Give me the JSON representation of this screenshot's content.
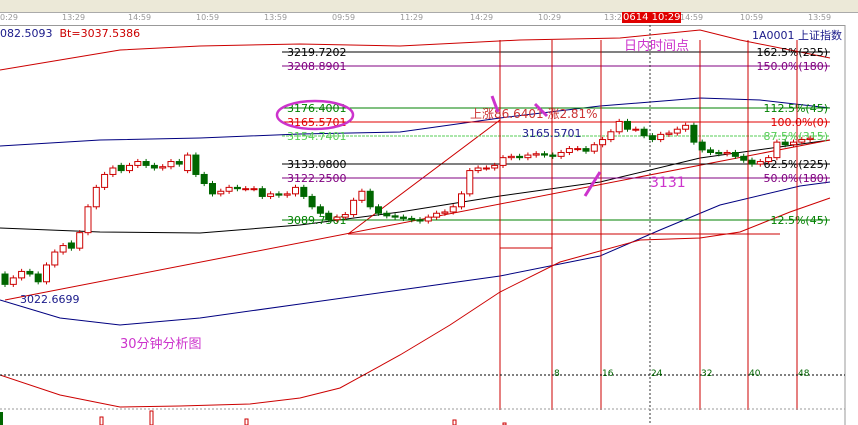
{
  "header": {
    "ma_value": "082.5093",
    "bt_value": "Bt=3037.5386",
    "symbol": "1A0001  上证指数",
    "cursor_time": "0614 10:29"
  },
  "time_axis": [
    "0:29",
    "13:29",
    "14:59",
    "10:59",
    "13:59",
    "09:59",
    "11:29",
    "14:29",
    "10:29",
    "13:2",
    "14:59",
    "10:59",
    "13:59"
  ],
  "chart_data": {
    "type": "candlestick",
    "title": "30分钟分析图",
    "price_levels": [
      {
        "price": "3219.7202",
        "ratio": "162.5%(225)",
        "color": "#000000"
      },
      {
        "price": "3208.8901",
        "ratio": "150.0%(180)",
        "color": "#800080"
      },
      {
        "price": "3176.4001",
        "ratio": "112.5%(45)",
        "color": "#008000"
      },
      {
        "price": "3165.5701",
        "ratio": "100.0%(0)",
        "color": "#e00000"
      },
      {
        "price": "3154.7401",
        "ratio": "87.5%(315)",
        "color": "#55cc55"
      },
      {
        "price": "3133.0800",
        "ratio": "62.5%(225)",
        "color": "#000000"
      },
      {
        "price": "3122.2500",
        "ratio": "50.0%(180)",
        "color": "#800080"
      },
      {
        "price": "3089.7501",
        "ratio": "12.5%(45)",
        "color": "#008000"
      }
    ],
    "low_label": "3022.6699",
    "annotations": {
      "rise": "上涨86.6401 涨2.81%",
      "high_mark": "3165.5701",
      "intraday": "日内时间点",
      "support": "3131"
    },
    "time_counts": [
      "8",
      "16",
      "24",
      "32",
      "40",
      "48"
    ],
    "close": [
      3040,
      3045,
      3050,
      3048,
      3042,
      3055,
      3065,
      3070,
      3068,
      3080,
      3100,
      3115,
      3125,
      3130,
      3128,
      3132,
      3135,
      3132,
      3130,
      3131,
      3135,
      3133,
      3140,
      3125,
      3118,
      3110,
      3112,
      3115,
      3114,
      3114,
      3114,
      3108,
      3110,
      3109,
      3110,
      3115,
      3108,
      3100,
      3095,
      3090,
      3092,
      3094,
      3105,
      3112,
      3100,
      3095,
      3093,
      3092,
      3091,
      3090,
      3089,
      3092,
      3095,
      3096,
      3100,
      3110,
      3128,
      3130,
      3130,
      3132,
      3138,
      3139,
      3138,
      3140,
      3141,
      3140,
      3139,
      3142,
      3145,
      3145,
      3143,
      3148,
      3152,
      3158,
      3166,
      3160,
      3160,
      3155,
      3152,
      3156,
      3157,
      3160,
      3163,
      3150,
      3144,
      3142,
      3141,
      3142,
      3139,
      3136,
      3133,
      3135,
      3138,
      3150,
      3148,
      3150,
      3152,
      3153
    ],
    "open": [
      3048,
      3040,
      3045,
      3050,
      3048,
      3042,
      3055,
      3065,
      3072,
      3068,
      3080,
      3100,
      3115,
      3125,
      3132,
      3128,
      3132,
      3135,
      3132,
      3130,
      3131,
      3135,
      3128,
      3140,
      3125,
      3118,
      3110,
      3112,
      3115,
      3114,
      3114,
      3114,
      3108,
      3110,
      3109,
      3110,
      3115,
      3108,
      3100,
      3095,
      3090,
      3092,
      3094,
      3105,
      3112,
      3100,
      3095,
      3093,
      3092,
      3091,
      3090,
      3089,
      3092,
      3095,
      3096,
      3100,
      3110,
      3128,
      3130,
      3130,
      3132,
      3138,
      3139,
      3138,
      3140,
      3141,
      3140,
      3139,
      3142,
      3145,
      3145,
      3143,
      3148,
      3152,
      3158,
      3166,
      3160,
      3160,
      3155,
      3152,
      3156,
      3157,
      3160,
      3163,
      3150,
      3144,
      3142,
      3141,
      3142,
      3139,
      3136,
      3133,
      3135,
      3138,
      3150,
      3148,
      3150,
      3152
    ],
    "colors": {
      "up": "#cc0000",
      "down": "#006600",
      "ma": "#000000",
      "boll": "#000080",
      "band": "#cc0000",
      "annotation": "#cc33cc"
    }
  }
}
